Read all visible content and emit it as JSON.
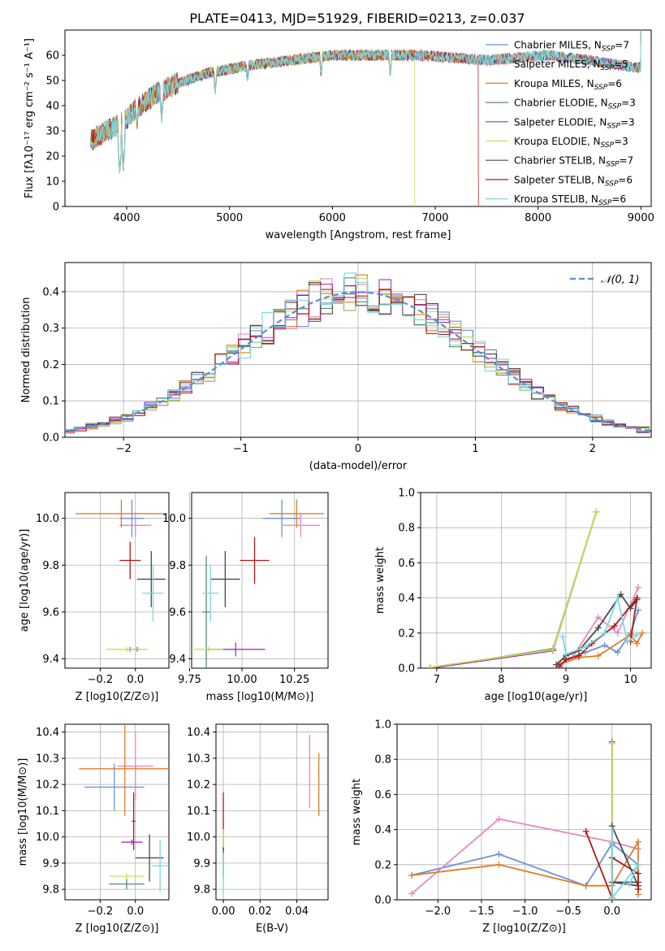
{
  "palette": [
    "#6891e0",
    "#e689c1",
    "#e07d25",
    "#5a8a6a",
    "#a030c0",
    "#c8e050",
    "#4a4a4a",
    "#b01818",
    "#7ad8e0"
  ],
  "series_names": [
    "Chabrier MILES, N_SSP=7",
    "Salpeter MILES, N_SSP=5",
    "Kroupa MILES, N_SSP=6",
    "Chabrier ELODIE, N_SSP=3",
    "Salpeter ELODIE, N_SSP=3",
    "Kroupa ELODIE, N_SSP=3",
    "Chabrier STELIB, N_SSP=7",
    "Salpeter STELIB, N_SSP=6",
    "Kroupa STELIB, N_SSP=6"
  ],
  "legend": [
    {
      "pre": "Chabrier MILES, N",
      "sub": "SSP",
      "post": "=7"
    },
    {
      "pre": "Salpeter MILES, N",
      "sub": "SSP",
      "post": "=5"
    },
    {
      "pre": "Kroupa MILES, N",
      "sub": "SSP",
      "post": "=6"
    },
    {
      "pre": "Chabrier ELODIE, N",
      "sub": "SSP",
      "post": "=3"
    },
    {
      "pre": "Salpeter ELODIE, N",
      "sub": "SSP",
      "post": "=3"
    },
    {
      "pre": "Kroupa ELODIE, N",
      "sub": "SSP",
      "post": "=3"
    },
    {
      "pre": "Chabrier STELIB, N",
      "sub": "SSP",
      "post": "=7"
    },
    {
      "pre": "Salpeter STELIB, N",
      "sub": "SSP",
      "post": "=6"
    },
    {
      "pre": "Kroupa STELIB, N",
      "sub": "SSP",
      "post": "=6"
    }
  ],
  "gauss_label": "𝒩(0, 1)",
  "chart_data": [
    {
      "id": "spectrum",
      "type": "line",
      "title": "PLATE=0413, MJD=51929, FIBERID=0213, z=0.037",
      "xlabel": "wavelength [Angstrom, rest frame]",
      "ylabel": "Flux [fλ10⁻¹⁷ erg cm⁻² s⁻¹ A⁻¹]",
      "xlim": [
        3400,
        9100
      ],
      "ylim": [
        0,
        70
      ],
      "xticks": [
        4000,
        5000,
        6000,
        7000,
        8000,
        9000
      ],
      "yticks": [
        0,
        10,
        20,
        30,
        40,
        50,
        60
      ],
      "continuum": [
        [
          3650,
          26
        ],
        [
          3800,
          30
        ],
        [
          3950,
          33
        ],
        [
          4100,
          39
        ],
        [
          4300,
          45
        ],
        [
          4500,
          49
        ],
        [
          4800,
          53
        ],
        [
          5200,
          56
        ],
        [
          5600,
          58
        ],
        [
          6000,
          60
        ],
        [
          6400,
          60
        ],
        [
          6800,
          60
        ],
        [
          7200,
          59
        ],
        [
          7500,
          58
        ],
        [
          7800,
          59
        ],
        [
          8100,
          60
        ],
        [
          8500,
          58
        ],
        [
          8800,
          56
        ],
        [
          9000,
          55
        ]
      ],
      "flux_end": [
        [
          5,
          6800,
          0
        ],
        [
          7,
          7420,
          0
        ],
        [
          0,
          9000,
          70
        ],
        [
          1,
          9000,
          70
        ],
        [
          2,
          9000,
          70
        ],
        [
          3,
          9000,
          70
        ],
        [
          4,
          9000,
          70
        ],
        [
          6,
          9000,
          70
        ],
        [
          8,
          9000,
          70
        ]
      ],
      "dips": [
        [
          3933,
          12
        ],
        [
          3968,
          14
        ],
        [
          4101,
          30
        ],
        [
          4340,
          33
        ],
        [
          4861,
          43
        ],
        [
          5175,
          47
        ],
        [
          5890,
          50
        ],
        [
          6563,
          50
        ]
      ]
    },
    {
      "id": "residuals",
      "type": "histogram",
      "xlabel": "(data-model)/error",
      "ylabel": "Normed distribution",
      "xlim": [
        -2.5,
        2.5
      ],
      "ylim": [
        0,
        0.48
      ],
      "xticks": [
        -2,
        -1,
        0,
        1,
        2
      ],
      "xticklabels": [
        "−2",
        "−1",
        "0",
        "1",
        "2"
      ],
      "yticks": [
        0.0,
        0.1,
        0.2,
        0.3,
        0.4
      ],
      "bin_width": 0.1,
      "gaussian": {
        "mean": 0,
        "sigma": 1
      }
    },
    {
      "id": "age_vs_Z",
      "type": "errorbar",
      "xlabel": "Z [log10(Z/Z⊙)]",
      "ylabel": "age  [log10(age/yr)]",
      "xlim": [
        -0.4,
        0.19
      ],
      "ylim": [
        9.36,
        10.11
      ],
      "xticks": [
        -0.2,
        0.0
      ],
      "xticklabels": [
        "−0.2",
        "0.0"
      ],
      "yticks": [
        9.4,
        9.6,
        9.8,
        10.0
      ],
      "points": [
        {
          "s": 0,
          "x": -0.02,
          "xe": 0.07,
          "y": 10.0,
          "ye": 0.08
        },
        {
          "s": 1,
          "x": 0.0,
          "xe": 0.09,
          "y": 9.97,
          "ye": 0.05
        },
        {
          "s": 2,
          "x": -0.08,
          "xe": 0.26,
          "y": 10.02,
          "ye": 0.06
        },
        {
          "s": 3,
          "x": -0.03,
          "xe": 0.02,
          "y": 9.44,
          "ye": 0.01
        },
        {
          "s": 4,
          "x": 0.01,
          "xe": 0.02,
          "y": 9.44,
          "ye": 0.01
        },
        {
          "s": 5,
          "x": -0.05,
          "xe": 0.12,
          "y": 9.44,
          "ye": 0.01
        },
        {
          "s": 6,
          "x": 0.09,
          "xe": 0.08,
          "y": 9.74,
          "ye": 0.12
        },
        {
          "s": 7,
          "x": -0.03,
          "xe": 0.06,
          "y": 9.82,
          "ye": 0.08
        },
        {
          "s": 8,
          "x": 0.1,
          "xe": 0.06,
          "y": 9.68,
          "ye": 0.12
        }
      ]
    },
    {
      "id": "age_vs_mass",
      "type": "errorbar",
      "xlabel": "mass [log10(M/M⊙)]",
      "ylabel": "",
      "xlim": [
        9.76,
        10.41
      ],
      "ylim": [
        9.36,
        10.11
      ],
      "xticks": [
        9.75,
        10.0,
        10.25
      ],
      "xticklabels": [
        "9.75",
        "10.00",
        "10.25"
      ],
      "yticks": [
        9.4,
        9.6,
        9.8,
        10.0
      ],
      "points": [
        {
          "s": 0,
          "x": 10.19,
          "xe": 0.09,
          "y": 10.0,
          "ye": 0.08
        },
        {
          "s": 1,
          "x": 10.28,
          "xe": 0.09,
          "y": 9.97,
          "ye": 0.05
        },
        {
          "s": 2,
          "x": 10.26,
          "xe": 0.13,
          "y": 10.02,
          "ye": 0.06
        },
        {
          "s": 3,
          "x": 9.83,
          "xe": 0.02,
          "y": 9.6,
          "ye": 0.24
        },
        {
          "s": 4,
          "x": 9.97,
          "xe": 0.14,
          "y": 9.44,
          "ye": 0.03
        },
        {
          "s": 5,
          "x": 9.84,
          "xe": 0.07,
          "y": 9.44,
          "ye": 0.01
        },
        {
          "s": 6,
          "x": 9.92,
          "xe": 0.07,
          "y": 9.74,
          "ye": 0.12
        },
        {
          "s": 7,
          "x": 10.06,
          "xe": 0.07,
          "y": 9.82,
          "ye": 0.1
        },
        {
          "s": 8,
          "x": 9.85,
          "xe": 0.04,
          "y": 9.68,
          "ye": 0.12
        }
      ]
    },
    {
      "id": "massweight_vs_age",
      "type": "line",
      "xlabel": "age  [log10(age/yr)]",
      "ylabel": "mass weight",
      "xlim": [
        6.75,
        10.32
      ],
      "ylim": [
        0.0,
        1.0
      ],
      "xticks": [
        7,
        8,
        9,
        10
      ],
      "yticks": [
        0.0,
        0.2,
        0.4,
        0.6,
        0.8,
        1.0
      ],
      "yticklabels": [
        "0.0",
        "0.2",
        "0.4",
        "0.6",
        "0.8",
        "1.0"
      ],
      "series": [
        {
          "s": 0,
          "x": [
            8.9,
            9.0,
            9.3,
            9.6,
            9.8,
            10.0,
            10.12
          ],
          "y": [
            0.01,
            0.05,
            0.09,
            0.13,
            0.09,
            0.2,
            0.33
          ]
        },
        {
          "s": 1,
          "x": [
            8.92,
            9.1,
            9.5,
            9.8,
            10.12
          ],
          "y": [
            0.02,
            0.06,
            0.29,
            0.2,
            0.46
          ]
        },
        {
          "s": 2,
          "x": [
            8.88,
            9.2,
            9.5,
            10.0,
            10.1,
            10.18
          ],
          "y": [
            0.02,
            0.06,
            0.07,
            0.19,
            0.14,
            0.2
          ]
        },
        {
          "s": 3,
          "x": [
            6.9,
            8.8,
            9.47
          ],
          "y": [
            0.0,
            0.11,
            0.89
          ]
        },
        {
          "s": 4,
          "x": [
            6.9,
            8.8,
            9.47
          ],
          "y": [
            0.0,
            0.1,
            0.89
          ]
        },
        {
          "s": 5,
          "x": [
            6.9,
            8.8,
            9.47
          ],
          "y": [
            0.005,
            0.105,
            0.89
          ]
        },
        {
          "s": 6,
          "x": [
            8.85,
            9.0,
            9.2,
            9.5,
            9.85,
            10.0,
            10.1
          ],
          "y": [
            0.02,
            0.07,
            0.1,
            0.23,
            0.42,
            0.34,
            0.39
          ]
        },
        {
          "s": 7,
          "x": [
            8.9,
            9.0,
            9.2,
            9.4,
            9.75,
            10.1,
            10.0
          ],
          "y": [
            0.01,
            0.05,
            0.07,
            0.14,
            0.24,
            0.4,
            0.15
          ]
        },
        {
          "s": 8,
          "x": [
            8.95,
            9.0,
            9.3,
            9.6,
            9.8,
            9.95,
            10.1
          ],
          "y": [
            0.18,
            0.08,
            0.12,
            0.2,
            0.4,
            0.15,
            0.19
          ]
        }
      ]
    },
    {
      "id": "mass_vs_Z",
      "type": "errorbar",
      "xlabel": "Z [log10(Z/Z⊙)]",
      "ylabel": "mass [log10(M/M⊙)]",
      "xlim": [
        -0.4,
        0.19
      ],
      "ylim": [
        9.76,
        10.43
      ],
      "xticks": [
        -0.2,
        0.0
      ],
      "xticklabels": [
        "−0.2",
        "0.0"
      ],
      "yticks": [
        9.8,
        9.9,
        10.0,
        10.1,
        10.2,
        10.3,
        10.4
      ],
      "points": [
        {
          "s": 0,
          "x": -0.12,
          "xe": 0.17,
          "y": 10.19,
          "ye": 0.09
        },
        {
          "s": 1,
          "x": 0.0,
          "xe": 0.1,
          "y": 10.27,
          "ye": 0.13
        },
        {
          "s": 2,
          "x": -0.06,
          "xe": 0.26,
          "y": 10.26,
          "ye": 0.18
        },
        {
          "s": 3,
          "x": -0.05,
          "xe": 0.1,
          "y": 9.82,
          "ye": 0.02
        },
        {
          "s": 4,
          "x": -0.02,
          "xe": 0.06,
          "y": 9.98,
          "ye": 0.01
        },
        {
          "s": 5,
          "x": -0.05,
          "xe": 0.1,
          "y": 9.85,
          "ye": 0.01
        },
        {
          "s": 6,
          "x": 0.08,
          "xe": 0.08,
          "y": 9.92,
          "ye": 0.09
        },
        {
          "s": 7,
          "x": -0.01,
          "xe": 0.01,
          "y": 10.06,
          "ye": 0.11
        },
        {
          "s": 8,
          "x": 0.14,
          "xe": 0.05,
          "y": 9.89,
          "ye": 0.1
        }
      ]
    },
    {
      "id": "mass_vs_ebv",
      "type": "errorbar",
      "xlabel": "E(B-V)",
      "ylabel": "",
      "xlim": [
        -0.004,
        0.057
      ],
      "ylim": [
        9.76,
        10.43
      ],
      "xticks": [
        0.0,
        0.02,
        0.04
      ],
      "xticklabels": [
        "0.00",
        "0.02",
        "0.04"
      ],
      "yticks": [
        9.8,
        9.9,
        10.0,
        10.1,
        10.2,
        10.3,
        10.4
      ],
      "points": [
        {
          "s": 1,
          "x": 0.047,
          "xe": 0.0,
          "y": 10.25,
          "ye": 0.14
        },
        {
          "s": 2,
          "x": 0.052,
          "xe": 0.0,
          "y": 10.2,
          "ye": 0.12
        },
        {
          "s": 7,
          "x": 0.0,
          "xe": 0.0,
          "y": 10.06,
          "ye": 0.11
        },
        {
          "s": 5,
          "x": 0.0,
          "xe": 0.0,
          "y": 9.98,
          "ye": 0.05
        },
        {
          "s": 6,
          "x": 0.0,
          "xe": 0.0,
          "y": 9.9,
          "ye": 0.06
        },
        {
          "s": 8,
          "x": 0.0,
          "xe": 0.0,
          "y": 9.86,
          "ye": 0.08
        }
      ]
    },
    {
      "id": "massweight_vs_Z",
      "type": "line",
      "xlabel": "Z [log10(Z/Z⊙)]",
      "ylabel": "mass weight",
      "xlim": [
        -2.47,
        0.45
      ],
      "ylim": [
        0.0,
        1.0
      ],
      "xticks": [
        -2.0,
        -1.5,
        -1.0,
        -0.5,
        0.0
      ],
      "xticklabels": [
        "−2.0",
        "−1.5",
        "−1.0",
        "−0.5",
        "0.0"
      ],
      "yticks": [
        0.0,
        0.2,
        0.4,
        0.6,
        0.8,
        1.0
      ],
      "yticklabels": [
        "0.0",
        "0.2",
        "0.4",
        "0.6",
        "0.8",
        "1.0"
      ],
      "series": [
        {
          "s": 0,
          "x": [
            -2.3,
            -1.3,
            -0.3,
            0.0,
            0.3
          ],
          "y": [
            0.14,
            0.26,
            0.08,
            0.32,
            0.2
          ]
        },
        {
          "s": 1,
          "x": [
            -2.3,
            -1.3,
            0.0,
            0.3
          ],
          "y": [
            0.035,
            0.46,
            0.33,
            0.29
          ]
        },
        {
          "s": 2,
          "x": [
            -2.3,
            -1.3,
            -0.3,
            0.0,
            0.3,
            0.3
          ],
          "y": [
            0.14,
            0.2,
            0.08,
            0.08,
            0.33,
            0.03
          ]
        },
        {
          "s": 3,
          "x": [
            0.0,
            0.0
          ],
          "y": [
            0.89,
            0.0
          ]
        },
        {
          "s": 4,
          "x": [
            0.0,
            0.0
          ],
          "y": [
            0.9,
            0.0
          ]
        },
        {
          "s": 5,
          "x": [
            0.0,
            0.0
          ],
          "y": [
            0.89,
            0.005
          ]
        },
        {
          "s": 6,
          "x": [
            0.0,
            0.3,
            0.0,
            0.3
          ],
          "y": [
            0.42,
            0.08,
            0.1,
            0.1
          ]
        },
        {
          "s": 7,
          "x": [
            -0.3,
            0.0,
            0.0,
            0.3,
            0.3
          ],
          "y": [
            0.39,
            0.01,
            0.24,
            0.15,
            0.06
          ]
        },
        {
          "s": 8,
          "x": [
            0.0,
            0.0,
            0.3,
            0.2
          ],
          "y": [
            0.4,
            0.01,
            0.2,
            0.09
          ]
        }
      ]
    }
  ]
}
